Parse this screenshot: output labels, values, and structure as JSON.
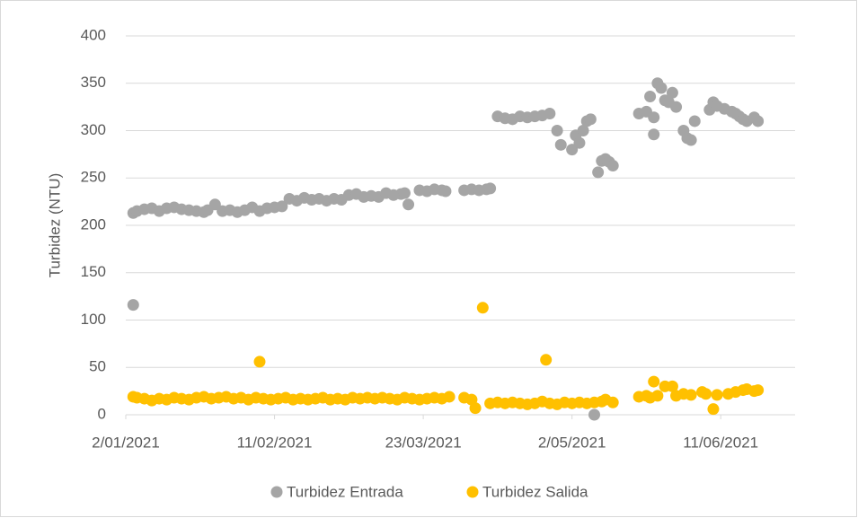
{
  "chart_data": {
    "type": "scatter",
    "y_label": "Turbidez (NTU)",
    "xlim": [
      "2021-01-02",
      "2021-07-01"
    ],
    "xticks": [
      {
        "value": "2021-01-02",
        "label": "2/01/2021"
      },
      {
        "value": "2021-02-11",
        "label": "11/02/2021"
      },
      {
        "value": "2021-03-23",
        "label": "23/03/2021"
      },
      {
        "value": "2021-05-02",
        "label": "2/05/2021"
      },
      {
        "value": "2021-06-11",
        "label": "11/06/2021"
      }
    ],
    "ylim": [
      0,
      400
    ],
    "yticks": [
      0,
      50,
      100,
      150,
      200,
      250,
      300,
      350,
      400
    ],
    "grid": true,
    "legend": "bottom",
    "series": [
      {
        "name": "Turbidez Entrada",
        "color": "#a5a5a5",
        "x": [
          "2021-01-04",
          "2021-01-04",
          "2021-01-05",
          "2021-01-07",
          "2021-01-09",
          "2021-01-11",
          "2021-01-13",
          "2021-01-15",
          "2021-01-17",
          "2021-01-19",
          "2021-01-21",
          "2021-01-23",
          "2021-01-24",
          "2021-01-26",
          "2021-01-28",
          "2021-01-30",
          "2021-02-01",
          "2021-02-03",
          "2021-02-05",
          "2021-02-07",
          "2021-02-09",
          "2021-02-11",
          "2021-02-13",
          "2021-02-15",
          "2021-02-17",
          "2021-02-19",
          "2021-02-21",
          "2021-02-23",
          "2021-02-25",
          "2021-02-27",
          "2021-03-01",
          "2021-03-03",
          "2021-03-05",
          "2021-03-07",
          "2021-03-09",
          "2021-03-11",
          "2021-03-13",
          "2021-03-15",
          "2021-03-17",
          "2021-03-18",
          "2021-03-19",
          "2021-03-22",
          "2021-03-24",
          "2021-03-26",
          "2021-03-28",
          "2021-03-29",
          "2021-04-03",
          "2021-04-05",
          "2021-04-07",
          "2021-04-09",
          "2021-04-10",
          "2021-04-12",
          "2021-04-14",
          "2021-04-16",
          "2021-04-18",
          "2021-04-20",
          "2021-04-22",
          "2021-04-24",
          "2021-04-26",
          "2021-04-28",
          "2021-04-29",
          "2021-05-02",
          "2021-05-03",
          "2021-05-04",
          "2021-05-05",
          "2021-05-06",
          "2021-05-07",
          "2021-05-08",
          "2021-05-09",
          "2021-05-10",
          "2021-05-11",
          "2021-05-12",
          "2021-05-13",
          "2021-05-20",
          "2021-05-22",
          "2021-05-23",
          "2021-05-24",
          "2021-05-24",
          "2021-05-25",
          "2021-05-26",
          "2021-05-27",
          "2021-05-28",
          "2021-05-29",
          "2021-05-30",
          "2021-06-01",
          "2021-06-02",
          "2021-06-03",
          "2021-06-04",
          "2021-06-08",
          "2021-06-09",
          "2021-06-10",
          "2021-06-12",
          "2021-06-14",
          "2021-06-15",
          "2021-06-16",
          "2021-06-17",
          "2021-06-18",
          "2021-06-20",
          "2021-06-21"
        ],
        "values": [
          116,
          213,
          215,
          217,
          218,
          215,
          218,
          219,
          217,
          216,
          215,
          214,
          216,
          222,
          215,
          216,
          214,
          216,
          219,
          215,
          218,
          219,
          220,
          228,
          226,
          229,
          227,
          228,
          226,
          228,
          227,
          232,
          233,
          230,
          231,
          230,
          234,
          232,
          233,
          234,
          222,
          237,
          236,
          238,
          237,
          236,
          237,
          238,
          237,
          238,
          239,
          315,
          313,
          312,
          315,
          314,
          315,
          316,
          318,
          300,
          285,
          280,
          295,
          287,
          300,
          310,
          312,
          0,
          256,
          268,
          270,
          267,
          263,
          318,
          320,
          336,
          296,
          314,
          350,
          345,
          332,
          330,
          340,
          325,
          300,
          292,
          290,
          310,
          322,
          330,
          326,
          323,
          320,
          318,
          315,
          312,
          310,
          314,
          310
        ]
      },
      {
        "name": "Turbidez Salida",
        "color": "#ffc000",
        "x": [
          "2021-01-04",
          "2021-01-05",
          "2021-01-07",
          "2021-01-09",
          "2021-01-11",
          "2021-01-13",
          "2021-01-15",
          "2021-01-17",
          "2021-01-19",
          "2021-01-21",
          "2021-01-23",
          "2021-01-25",
          "2021-01-27",
          "2021-01-29",
          "2021-01-31",
          "2021-02-02",
          "2021-02-04",
          "2021-02-06",
          "2021-02-07",
          "2021-02-08",
          "2021-02-10",
          "2021-02-12",
          "2021-02-14",
          "2021-02-16",
          "2021-02-18",
          "2021-02-20",
          "2021-02-22",
          "2021-02-24",
          "2021-02-26",
          "2021-02-28",
          "2021-03-02",
          "2021-03-04",
          "2021-03-06",
          "2021-03-08",
          "2021-03-10",
          "2021-03-12",
          "2021-03-14",
          "2021-03-16",
          "2021-03-18",
          "2021-03-20",
          "2021-03-22",
          "2021-03-24",
          "2021-03-26",
          "2021-03-28",
          "2021-03-30",
          "2021-04-03",
          "2021-04-05",
          "2021-04-06",
          "2021-04-08",
          "2021-04-10",
          "2021-04-12",
          "2021-04-14",
          "2021-04-16",
          "2021-04-18",
          "2021-04-20",
          "2021-04-22",
          "2021-04-24",
          "2021-04-25",
          "2021-04-26",
          "2021-04-28",
          "2021-04-30",
          "2021-05-02",
          "2021-05-04",
          "2021-05-06",
          "2021-05-08",
          "2021-05-10",
          "2021-05-11",
          "2021-05-13",
          "2021-05-20",
          "2021-05-22",
          "2021-05-23",
          "2021-05-24",
          "2021-05-25",
          "2021-05-27",
          "2021-05-29",
          "2021-05-30",
          "2021-06-01",
          "2021-06-03",
          "2021-06-06",
          "2021-06-07",
          "2021-06-09",
          "2021-06-10",
          "2021-06-13",
          "2021-06-15",
          "2021-06-17",
          "2021-06-18",
          "2021-06-20",
          "2021-06-21"
        ],
        "values": [
          19,
          18,
          17,
          15,
          17,
          16,
          18,
          17,
          16,
          18,
          19,
          17,
          18,
          19,
          17,
          18,
          16,
          18,
          56,
          17,
          16,
          17,
          18,
          16,
          17,
          16,
          17,
          18,
          16,
          17,
          16,
          18,
          17,
          18,
          17,
          18,
          17,
          16,
          18,
          17,
          16,
          17,
          18,
          17,
          19,
          18,
          16,
          7,
          113,
          12,
          13,
          12,
          13,
          12,
          11,
          12,
          14,
          58,
          12,
          11,
          13,
          12,
          13,
          12,
          13,
          14,
          16,
          13,
          19,
          20,
          18,
          35,
          20,
          30,
          30,
          20,
          22,
          21,
          24,
          22,
          6,
          21,
          22,
          24,
          26,
          27,
          25,
          26
        ]
      }
    ]
  }
}
